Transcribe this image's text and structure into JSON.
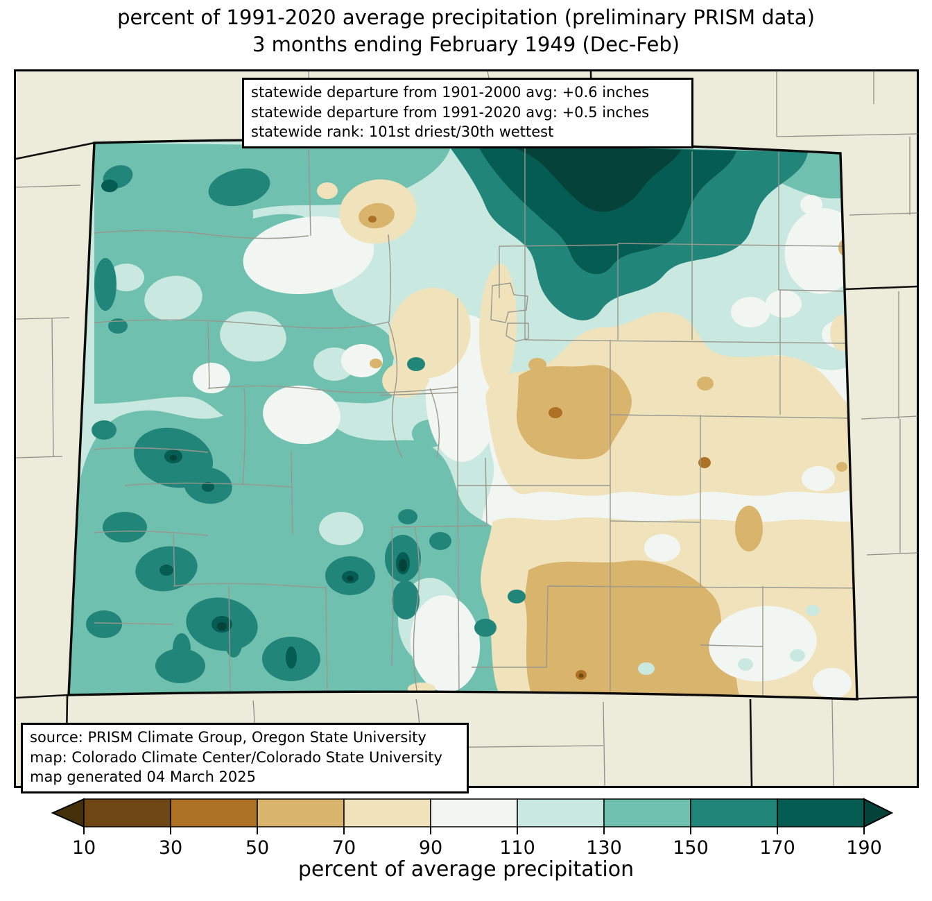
{
  "title": {
    "line1": "percent of 1991-2020 average precipitation (preliminary PRISM data)",
    "line2": "3 months ending February 1949 (Dec-Feb)"
  },
  "stats_box": {
    "line1": "statewide departure from 1901-2000 avg: +0.6 inches",
    "line2": "statewide departure from 1991-2020 avg: +0.5 inches",
    "line3": "statewide rank: 101st driest/30th wettest"
  },
  "source_box": {
    "line1": "source: PRISM Climate Group, Oregon State University",
    "line2": "map: Colorado Climate Center/Colorado State University",
    "line3": "map generated 04 March 2025"
  },
  "colorbar": {
    "label": "percent of average precipitation",
    "ticks": [
      "10",
      "30",
      "50",
      "70",
      "90",
      "110",
      "130",
      "150",
      "170",
      "190"
    ],
    "bins": [
      {
        "range": "<10",
        "color": "#45300C"
      },
      {
        "range": "10-30",
        "color": "#6F4714"
      },
      {
        "range": "30-50",
        "color": "#AC7124"
      },
      {
        "range": "50-70",
        "color": "#D9B46C"
      },
      {
        "range": "70-90",
        "color": "#F0E3BB"
      },
      {
        "range": "90-110",
        "color": "#F2F6F2"
      },
      {
        "range": "110-130",
        "color": "#C9E8DF"
      },
      {
        "range": "130-150",
        "color": "#6FC0AE"
      },
      {
        "range": "150-170",
        "color": "#228579"
      },
      {
        "range": "170-190",
        "color": "#055C52"
      },
      {
        "range": ">190",
        "color": "#04423A"
      }
    ]
  },
  "map": {
    "background_color": "#EDEBD9",
    "state_border_color": "#0A0A0A",
    "county_line_color": "#98988F"
  }
}
